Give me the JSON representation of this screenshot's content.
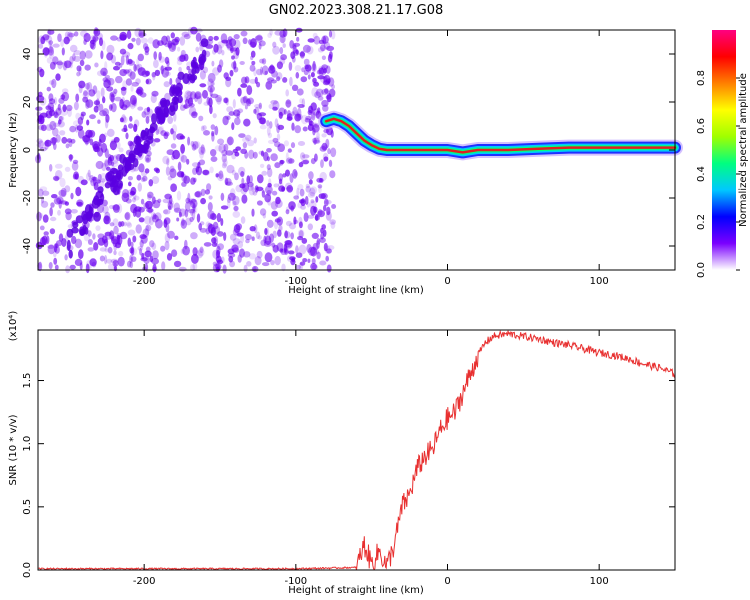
{
  "title": "GN02.2023.308.21.17.G08",
  "colors": {
    "snr_line": "#e83030",
    "scatter": "#6a00f0",
    "colormap": [
      "#ffffff",
      "#7a00ff",
      "#0000ff",
      "#00c8ff",
      "#00ff80",
      "#a0ff00",
      "#ffff00",
      "#ff8000",
      "#ff0000",
      "#ff0080"
    ]
  },
  "chart_data": [
    {
      "type": "heatmap",
      "xlabel": "Height of straight line (km)",
      "ylabel": "Frequency (Hz)",
      "xlim": [
        -270,
        150
      ],
      "ylim": [
        -50,
        50
      ],
      "xticks": [
        "-200",
        "-100",
        "0",
        "100"
      ],
      "yticks": [
        "-40",
        "-20",
        "0",
        "20",
        "40"
      ],
      "noise_region": {
        "x_range": [
          -270,
          -75
        ],
        "y_range": [
          -50,
          50
        ]
      },
      "ridge": {
        "x": [
          -80,
          -75,
          -70,
          -65,
          -60,
          -55,
          -50,
          -45,
          -40,
          -30,
          -20,
          -10,
          0,
          10,
          20,
          40,
          60,
          80,
          100,
          120,
          150
        ],
        "y": [
          12,
          13,
          12,
          10,
          7,
          4,
          2,
          0.5,
          0,
          0,
          0,
          0,
          0,
          -1,
          0,
          0,
          0.5,
          1,
          1,
          1,
          1
        ],
        "peak_amplitude": 0.9
      },
      "colorbar": {
        "label": "Normalized spectral amplitude",
        "range": [
          0,
          1
        ],
        "ticks": [
          "0.0",
          "0.2",
          "0.4",
          "0.6",
          "0.8"
        ]
      }
    },
    {
      "type": "line",
      "xlabel": "Height of straight line (km)",
      "ylabel": "SNR (10 * v/v)",
      "multiplier": "(x10⁴)",
      "xlim": [
        -270,
        150
      ],
      "ylim": [
        0,
        1.9
      ],
      "xticks": [
        "-200",
        "-100",
        "0",
        "100"
      ],
      "yticks": [
        "0.0",
        "0.5",
        "1.0",
        "1.5"
      ],
      "series": [
        {
          "x": [
            -270,
            -100,
            -60,
            -55,
            -50,
            -45,
            -40,
            -35,
            -30,
            -25,
            -20,
            -15,
            -10,
            -5,
            0,
            5,
            10,
            15,
            20,
            25,
            30,
            40,
            50,
            60,
            70,
            80,
            90,
            100,
            110,
            120,
            130,
            140,
            150
          ],
          "values": [
            0.01,
            0.01,
            0.02,
            0.2,
            0.05,
            0.15,
            0.03,
            0.2,
            0.5,
            0.6,
            0.8,
            0.9,
            0.95,
            1.1,
            1.2,
            1.25,
            1.4,
            1.55,
            1.7,
            1.8,
            1.85,
            1.87,
            1.85,
            1.83,
            1.8,
            1.78,
            1.75,
            1.72,
            1.7,
            1.67,
            1.63,
            1.6,
            1.55
          ]
        }
      ]
    }
  ]
}
